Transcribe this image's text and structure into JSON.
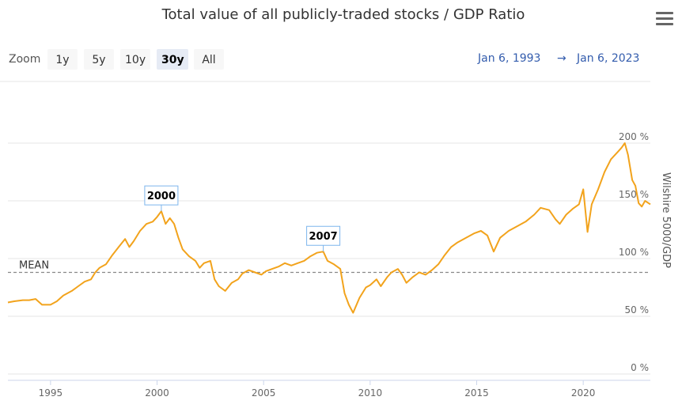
{
  "title": "Total value of all publicly-traded stocks / GDP Ratio",
  "menu_icon": "hamburger-menu-icon",
  "zoom": {
    "label": "Zoom",
    "buttons": [
      "1y",
      "5y",
      "10y",
      "30y",
      "All"
    ],
    "selected": "30y"
  },
  "range": {
    "from": "Jan 6, 1993",
    "arrow": "→",
    "to": "Jan 6, 2023"
  },
  "colors": {
    "series": "#f2a31c",
    "mean_line": "#888888",
    "grid": "#e6e6e6",
    "flag_border": "#7cb5ec"
  },
  "chart_data": {
    "type": "line",
    "title": "Total value of all publicly-traded stocks / GDP Ratio",
    "xlabel": "",
    "ylabel": "Wilshire 5000/GDP",
    "xlim": [
      1993.0,
      2023.15
    ],
    "ylim": [
      0,
      200
    ],
    "y_ticks": [
      {
        "value": 0,
        "label": "0 %"
      },
      {
        "value": 50,
        "label": "50 %"
      },
      {
        "value": 100,
        "label": "100 %"
      },
      {
        "value": 150,
        "label": "150 %"
      },
      {
        "value": 200,
        "label": "200 %"
      }
    ],
    "x_ticks": [
      {
        "value": 1995,
        "label": "1995"
      },
      {
        "value": 2000,
        "label": "2000"
      },
      {
        "value": 2005,
        "label": "2005"
      },
      {
        "value": 2010,
        "label": "2010"
      },
      {
        "value": 2015,
        "label": "2015"
      },
      {
        "value": 2020,
        "label": "2020"
      }
    ],
    "mean": {
      "value": 88,
      "label": "MEAN"
    },
    "flags": [
      {
        "label": "2000",
        "x": 2000.2,
        "y": 141
      },
      {
        "label": "2007",
        "x": 2007.8,
        "y": 106
      }
    ],
    "series": [
      {
        "name": "Wilshire 5000/GDP",
        "x": [
          1993.0,
          1993.3,
          1993.7,
          1994.0,
          1994.3,
          1994.6,
          1994.9,
          1995.0,
          1995.3,
          1995.6,
          1996.0,
          1996.3,
          1996.6,
          1996.9,
          1997.1,
          1997.3,
          1997.6,
          1997.9,
          1998.2,
          1998.5,
          1998.7,
          1998.9,
          1999.2,
          1999.5,
          1999.8,
          2000.0,
          2000.2,
          2000.4,
          2000.6,
          2000.8,
          2001.0,
          2001.2,
          2001.5,
          2001.8,
          2002.0,
          2002.2,
          2002.5,
          2002.7,
          2002.9,
          2003.2,
          2003.5,
          2003.8,
          2004.0,
          2004.3,
          2004.6,
          2004.9,
          2005.1,
          2005.4,
          2005.7,
          2006.0,
          2006.3,
          2006.6,
          2006.9,
          2007.2,
          2007.5,
          2007.8,
          2008.0,
          2008.3,
          2008.6,
          2008.8,
          2009.0,
          2009.2,
          2009.5,
          2009.8,
          2010.0,
          2010.3,
          2010.5,
          2010.8,
          2011.0,
          2011.3,
          2011.5,
          2011.7,
          2012.0,
          2012.3,
          2012.6,
          2012.9,
          2013.2,
          2013.5,
          2013.8,
          2014.1,
          2014.5,
          2014.9,
          2015.2,
          2015.5,
          2015.8,
          2016.1,
          2016.5,
          2016.9,
          2017.3,
          2017.7,
          2018.0,
          2018.4,
          2018.7,
          2018.9,
          2019.2,
          2019.5,
          2019.8,
          2020.0,
          2020.2,
          2020.4,
          2020.7,
          2021.0,
          2021.3,
          2021.6,
          2021.8,
          2021.95,
          2022.1,
          2022.3,
          2022.45,
          2022.6,
          2022.75,
          2022.9,
          2023.15
        ],
        "values": [
          62,
          63,
          64,
          64,
          65,
          60,
          60,
          60,
          63,
          68,
          72,
          76,
          80,
          82,
          88,
          92,
          95,
          103,
          110,
          117,
          110,
          115,
          124,
          130,
          132,
          136,
          141,
          130,
          135,
          130,
          118,
          108,
          102,
          98,
          92,
          96,
          98,
          82,
          76,
          72,
          79,
          82,
          87,
          90,
          88,
          86,
          89,
          91,
          93,
          96,
          94,
          96,
          98,
          102,
          105,
          106,
          98,
          95,
          91,
          70,
          60,
          53,
          66,
          75,
          77,
          82,
          76,
          84,
          88,
          91,
          86,
          79,
          84,
          88,
          86,
          90,
          95,
          103,
          110,
          114,
          118,
          122,
          124,
          120,
          106,
          118,
          124,
          128,
          132,
          138,
          144,
          142,
          134,
          130,
          138,
          143,
          147,
          160,
          123,
          147,
          160,
          175,
          186,
          192,
          196,
          200,
          190,
          168,
          163,
          148,
          145,
          150,
          147
        ]
      }
    ]
  },
  "axis_title": "Wilshire 5000/GDP"
}
